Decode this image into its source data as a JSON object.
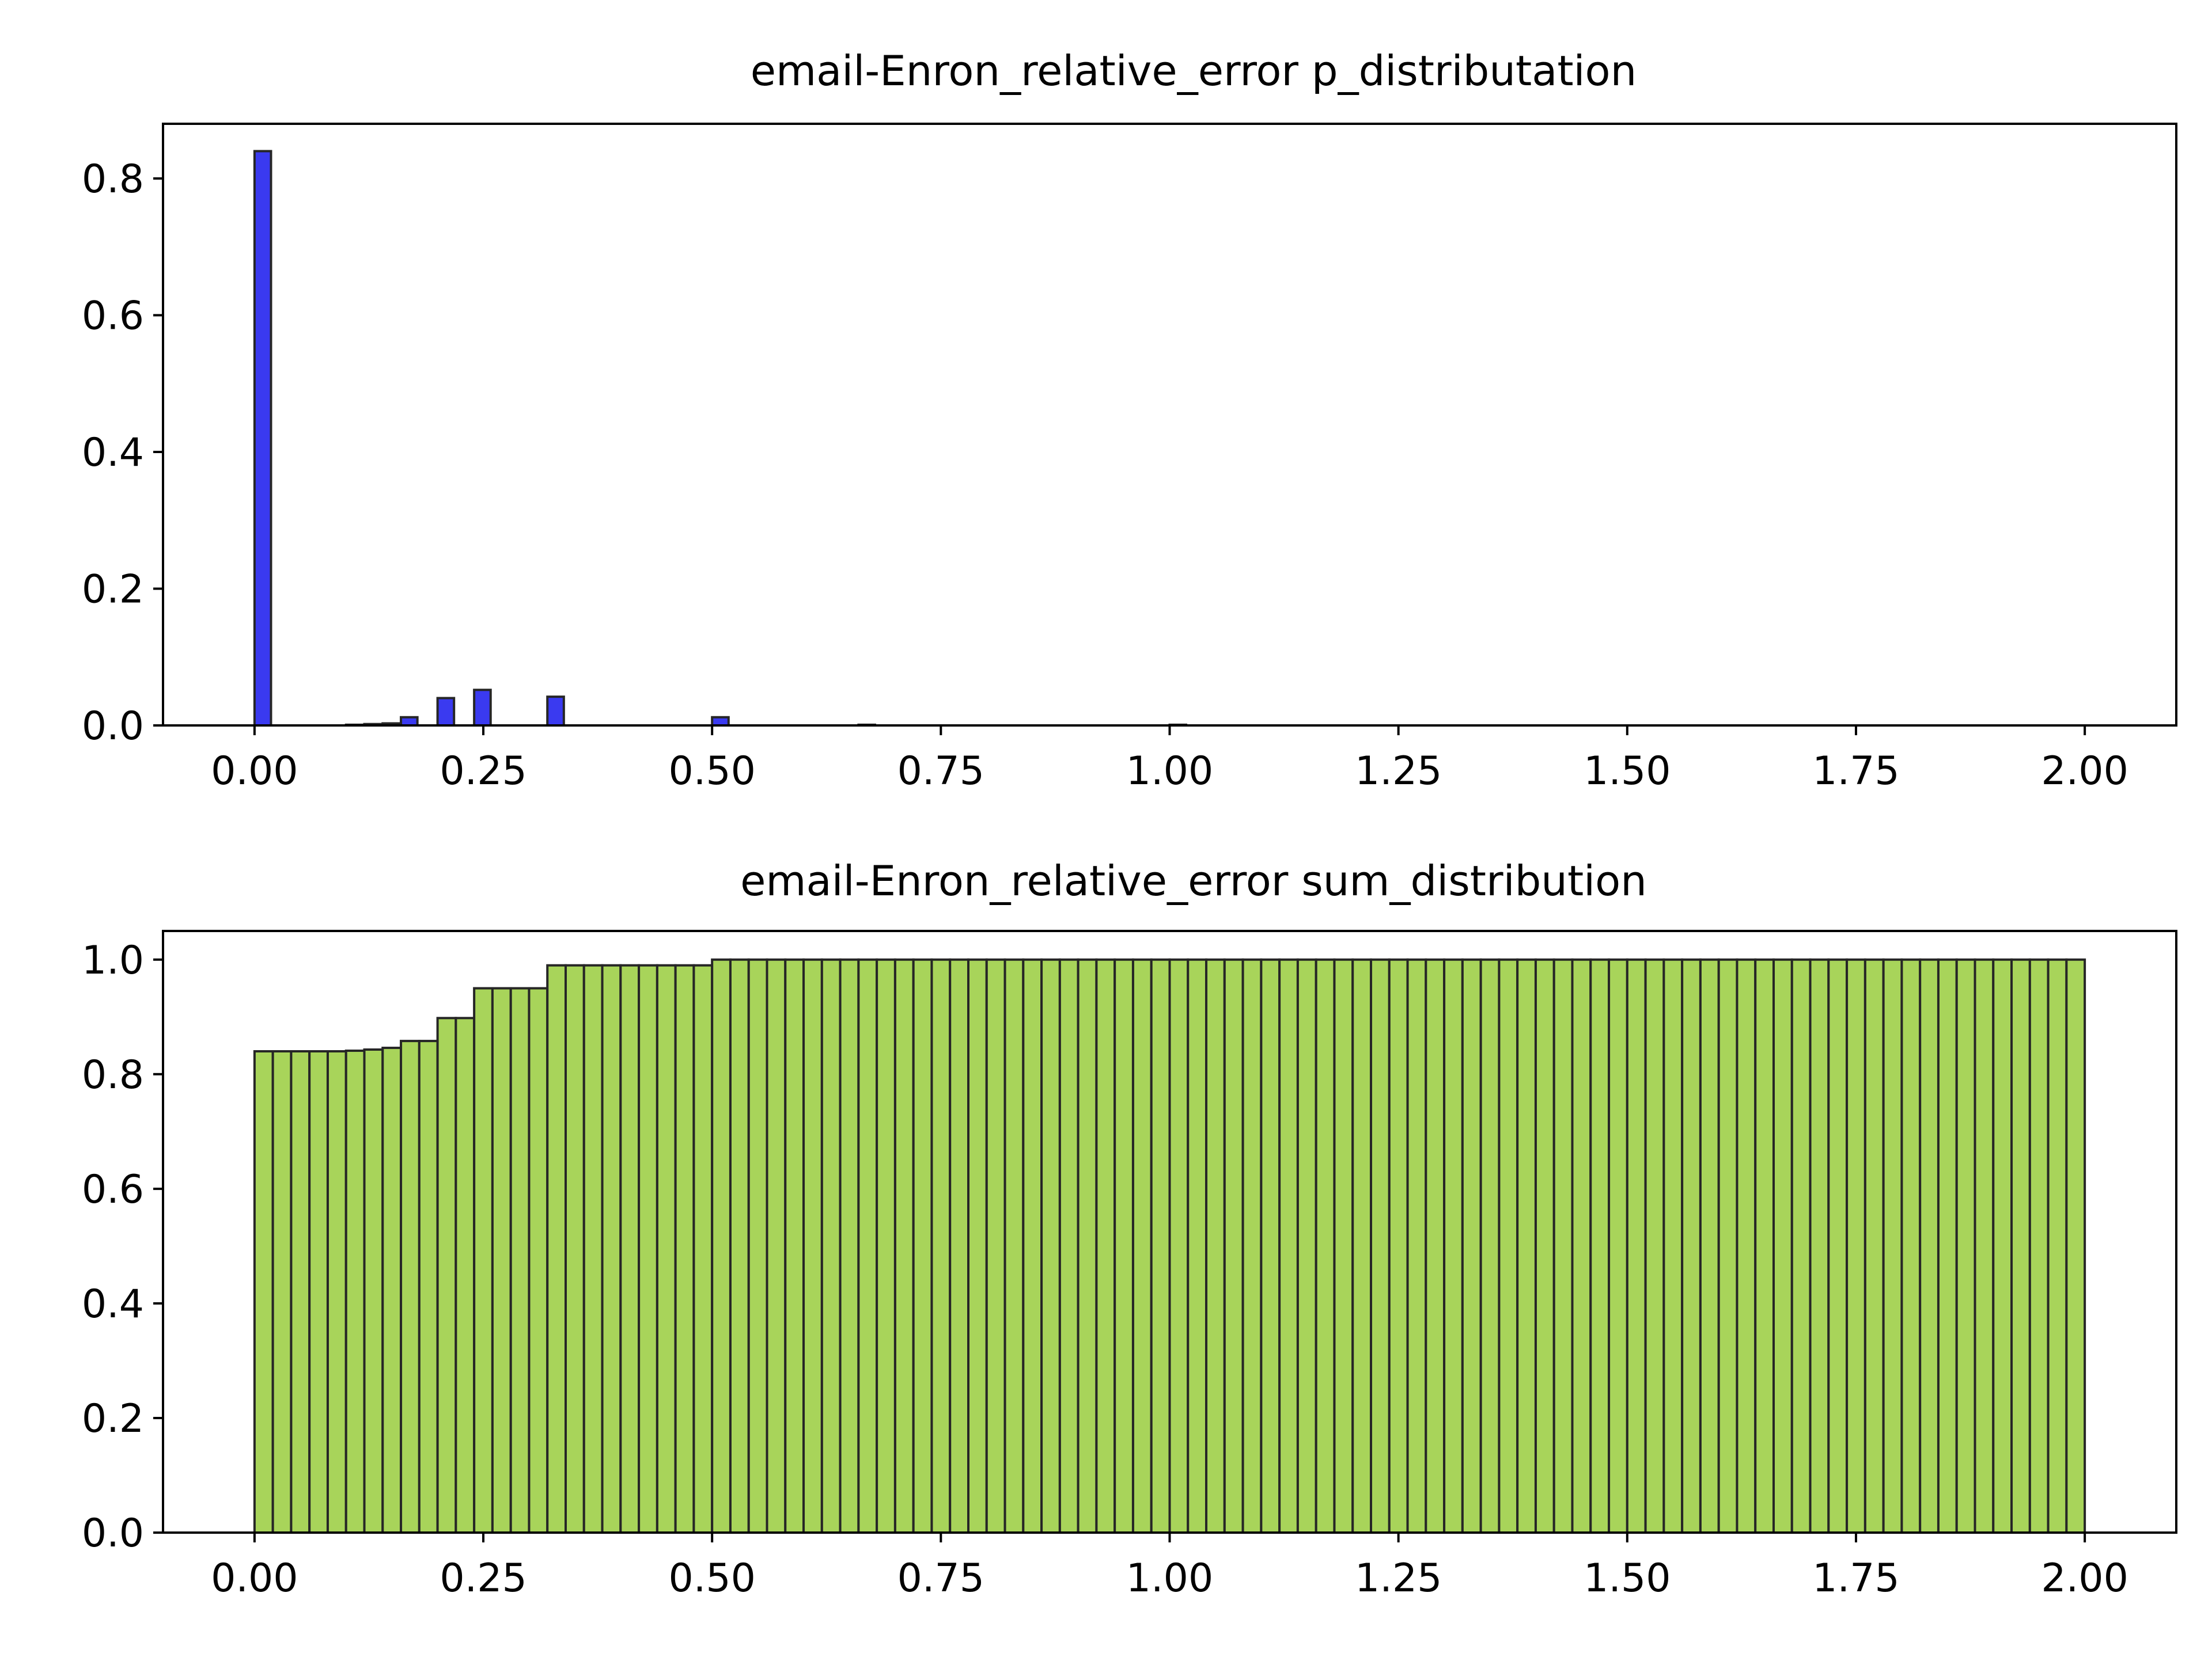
{
  "chart_data": [
    {
      "type": "bar",
      "title": "email-Enron_relative_error p_distributation",
      "xlabel": "",
      "ylabel": "",
      "bin_start": 0.0,
      "bin_width": 0.02,
      "bar_width": 0.018,
      "values": [
        0.84,
        0,
        0,
        0,
        0,
        0.001,
        0.002,
        0.003,
        0.012,
        0,
        0.04,
        0,
        0.052,
        0,
        0,
        0,
        0.042,
        0,
        0,
        0,
        0,
        0,
        0,
        0,
        0,
        0.012,
        0,
        0,
        0,
        0,
        0,
        0,
        0,
        0.001,
        0,
        0,
        0,
        0,
        0,
        0,
        0,
        0,
        0,
        0,
        0,
        0,
        0,
        0,
        0,
        0,
        0.001,
        0,
        0,
        0,
        0,
        0,
        0,
        0,
        0,
        0,
        0,
        0,
        0,
        0,
        0,
        0,
        0,
        0,
        0,
        0,
        0,
        0,
        0,
        0,
        0,
        0,
        0,
        0,
        0,
        0,
        0,
        0,
        0,
        0,
        0,
        0,
        0,
        0,
        0,
        0,
        0,
        0,
        0,
        0,
        0,
        0,
        0,
        0,
        0,
        0
      ],
      "xlim": [
        -0.1,
        2.1
      ],
      "ylim": [
        0,
        0.88
      ],
      "xticks": [
        "0.00",
        "0.25",
        "0.50",
        "0.75",
        "1.00",
        "1.25",
        "1.50",
        "1.75",
        "2.00"
      ],
      "yticks": [
        "0.0",
        "0.2",
        "0.4",
        "0.6",
        "0.8"
      ],
      "grid": false,
      "colors": {
        "bar": "#3a3af0",
        "edge": "#262626"
      }
    },
    {
      "type": "bar",
      "title": "email-Enron_relative_error sum_distribution",
      "xlabel": "",
      "ylabel": "",
      "bin_start": 0.0,
      "bin_width": 0.02,
      "bar_width": 0.02,
      "values": [
        0.84,
        0.84,
        0.84,
        0.84,
        0.84,
        0.841,
        0.843,
        0.846,
        0.858,
        0.858,
        0.898,
        0.898,
        0.95,
        0.95,
        0.95,
        0.95,
        0.99,
        0.99,
        0.99,
        0.99,
        0.99,
        0.99,
        0.99,
        0.99,
        0.99,
        1.0,
        1.0,
        1.0,
        1.0,
        1.0,
        1.0,
        1.0,
        1.0,
        1.0,
        1.0,
        1.0,
        1.0,
        1.0,
        1.0,
        1.0,
        1.0,
        1.0,
        1.0,
        1.0,
        1.0,
        1.0,
        1.0,
        1.0,
        1.0,
        1.0,
        1.0,
        1.0,
        1.0,
        1.0,
        1.0,
        1.0,
        1.0,
        1.0,
        1.0,
        1.0,
        1.0,
        1.0,
        1.0,
        1.0,
        1.0,
        1.0,
        1.0,
        1.0,
        1.0,
        1.0,
        1.0,
        1.0,
        1.0,
        1.0,
        1.0,
        1.0,
        1.0,
        1.0,
        1.0,
        1.0,
        1.0,
        1.0,
        1.0,
        1.0,
        1.0,
        1.0,
        1.0,
        1.0,
        1.0,
        1.0,
        1.0,
        1.0,
        1.0,
        1.0,
        1.0,
        1.0,
        1.0,
        1.0,
        1.0,
        1.0
      ],
      "xlim": [
        -0.1,
        2.1
      ],
      "ylim": [
        0,
        1.05
      ],
      "xticks": [
        "0.00",
        "0.25",
        "0.50",
        "0.75",
        "1.00",
        "1.25",
        "1.50",
        "1.75",
        "2.00"
      ],
      "yticks": [
        "0.0",
        "0.2",
        "0.4",
        "0.6",
        "0.8",
        "1.0"
      ],
      "grid": false,
      "colors": {
        "bar": "#a8d45a",
        "edge": "#262626"
      }
    }
  ]
}
